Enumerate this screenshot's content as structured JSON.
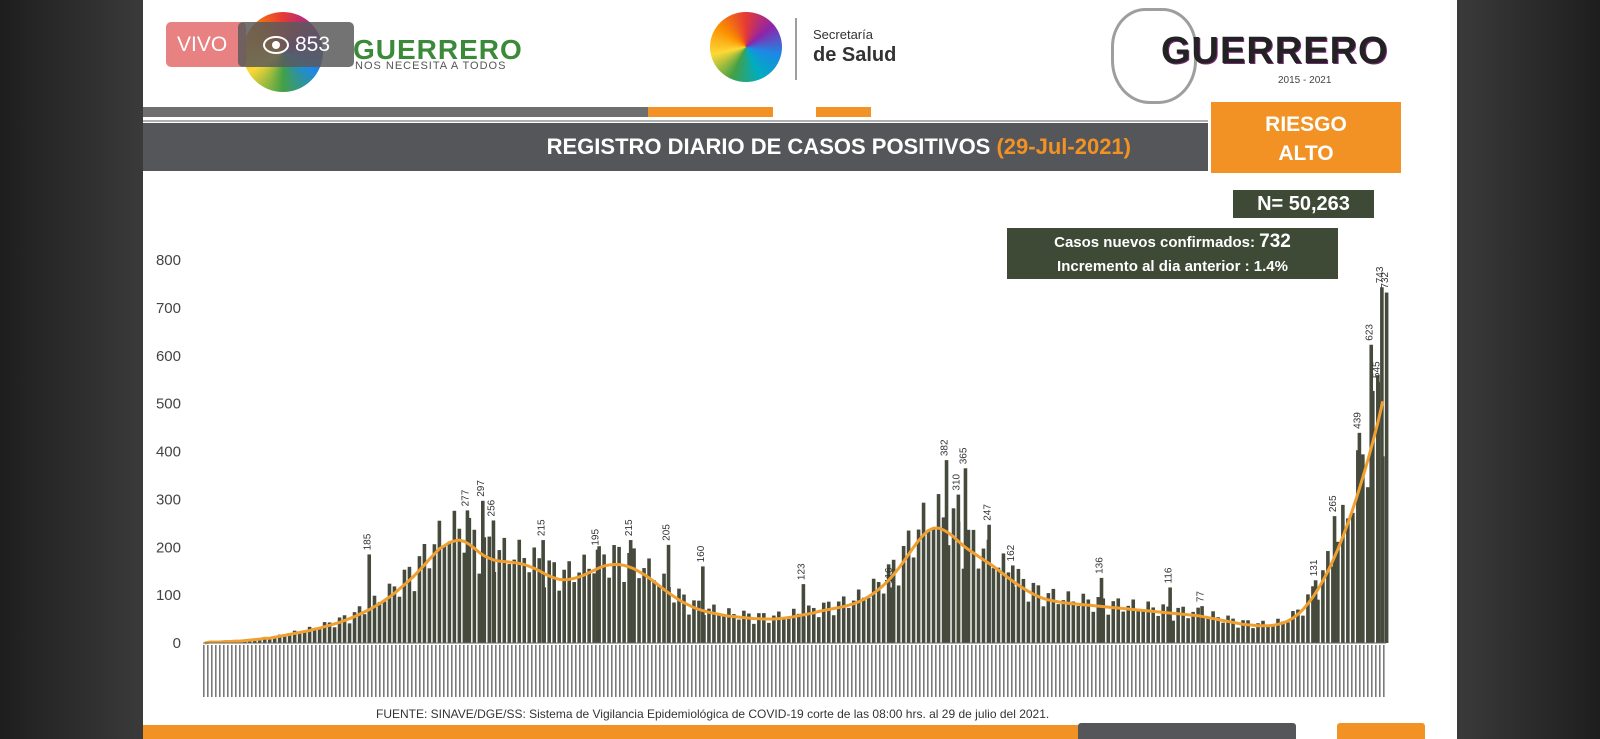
{
  "live": {
    "label": "VIVO",
    "viewers": "853"
  },
  "header": {
    "left_logo": {
      "name": "GUERRERO",
      "tagline": "NOS NECESITA A TODOS"
    },
    "center_logo": {
      "line1": "Secretaría",
      "line2": "de Salud"
    },
    "right_logo": {
      "name": "GUERRERO",
      "years": "2015 - 2021"
    }
  },
  "title": {
    "main": "REGISTRO DIARIO DE CASOS POSITIVOS",
    "date": "(29-Jul-2021)"
  },
  "risk": {
    "line1": "RIESGO",
    "line2": "ALTO"
  },
  "summary": {
    "total": "N= 50,263",
    "new_label": "Casos nuevos confirmados:",
    "new_value": "732",
    "increment": "Incremento al dia anterior : 1.4%"
  },
  "source": "FUENTE: SINAVE/DGE/SS: Sistema de Vigilancia Epidemiológica de COVID-19 corte de las 08:00 hrs. al 29 de julio del 2021.",
  "chart_data": {
    "type": "bar",
    "series": [
      {
        "kind": "bar",
        "color": "#454a3c"
      },
      {
        "kind": "line",
        "color": "#f0a030"
      }
    ],
    "ylim": [
      0,
      800
    ],
    "y_ticks": [
      0,
      100,
      200,
      300,
      400,
      500,
      600,
      700,
      800
    ],
    "grid": false,
    "peaks": [
      {
        "label": "185",
        "value": 185,
        "frac": 0.139
      },
      {
        "label": "277",
        "value": 277,
        "frac": 0.222
      },
      {
        "label": "297",
        "value": 297,
        "frac": 0.235
      },
      {
        "label": "256",
        "value": 256,
        "frac": 0.244
      },
      {
        "label": "215",
        "value": 215,
        "frac": 0.286
      },
      {
        "label": "195",
        "value": 195,
        "frac": 0.332
      },
      {
        "label": "215",
        "value": 215,
        "frac": 0.36
      },
      {
        "label": "205",
        "value": 205,
        "frac": 0.392
      },
      {
        "label": "160",
        "value": 160,
        "frac": 0.421
      },
      {
        "label": "123",
        "value": 123,
        "frac": 0.506
      },
      {
        "label": "116",
        "value": 116,
        "frac": 0.58
      },
      {
        "label": "382",
        "value": 382,
        "frac": 0.627
      },
      {
        "label": "365",
        "value": 365,
        "frac": 0.643
      },
      {
        "label": "310",
        "value": 310,
        "frac": 0.637
      },
      {
        "label": "247",
        "value": 247,
        "frac": 0.663
      },
      {
        "label": "162",
        "value": 162,
        "frac": 0.683
      },
      {
        "label": "136",
        "value": 136,
        "frac": 0.758
      },
      {
        "label": "116",
        "value": 116,
        "frac": 0.816
      },
      {
        "label": "77",
        "value": 77,
        "frac": 0.843
      },
      {
        "label": "131",
        "value": 131,
        "frac": 0.939
      },
      {
        "label": "265",
        "value": 265,
        "frac": 0.955
      },
      {
        "label": "439",
        "value": 439,
        "frac": 0.976
      },
      {
        "label": "623",
        "value": 623,
        "frac": 0.986
      },
      {
        "label": "545",
        "value": 545,
        "frac": 0.992
      },
      {
        "label": "743",
        "value": 743,
        "frac": 0.995
      },
      {
        "label": "732",
        "value": 732,
        "frac": 0.999
      }
    ],
    "values": [
      0,
      2,
      2,
      2,
      3,
      3,
      4,
      4,
      5,
      6,
      7,
      8,
      10,
      10,
      12,
      14,
      16,
      18,
      20,
      22,
      24,
      26,
      29,
      31,
      34,
      37,
      40,
      43,
      47,
      51,
      55,
      60,
      65,
      70,
      76,
      82,
      89,
      96,
      104,
      113,
      122,
      131,
      141,
      152,
      163,
      175,
      186,
      197,
      203,
      210,
      213,
      215,
      212,
      206,
      198,
      189,
      182,
      177,
      173,
      171,
      170,
      169,
      168,
      166,
      164,
      160,
      156,
      151,
      145,
      140,
      136,
      133,
      132,
      133,
      135,
      138,
      142,
      147,
      152,
      157,
      161,
      163,
      164,
      164,
      162,
      159,
      155,
      149,
      143,
      136,
      128,
      120,
      112,
      104,
      97,
      90,
      84,
      79,
      74,
      70,
      67,
      64,
      62,
      60,
      58,
      56,
      55,
      54,
      53,
      52,
      51,
      51,
      50,
      50,
      50,
      51,
      52,
      53,
      55,
      57,
      59,
      61,
      63,
      66,
      68,
      70,
      72,
      74,
      76,
      79,
      82,
      86,
      91,
      97,
      104,
      112,
      121,
      131,
      143,
      156,
      170,
      185,
      200,
      214,
      226,
      235,
      240,
      240,
      236,
      230,
      222,
      212,
      203,
      195,
      188,
      181,
      174,
      167,
      160,
      152,
      144,
      136,
      128,
      121,
      114,
      108,
      102,
      97,
      93,
      90,
      88,
      86,
      84,
      83,
      82,
      81,
      80,
      79,
      78,
      77,
      76,
      75,
      74,
      73,
      72,
      71,
      70,
      69,
      68,
      67,
      66,
      65,
      64,
      63,
      62,
      61,
      60,
      59,
      58,
      57,
      55,
      53,
      51,
      49,
      47,
      45,
      43,
      41,
      39,
      38,
      37,
      36,
      36,
      36,
      37,
      39,
      42,
      46,
      52,
      60,
      70,
      82,
      96,
      112,
      130,
      150,
      172,
      196,
      222,
      250,
      280,
      312,
      346,
      382,
      420,
      460,
      505
    ]
  }
}
